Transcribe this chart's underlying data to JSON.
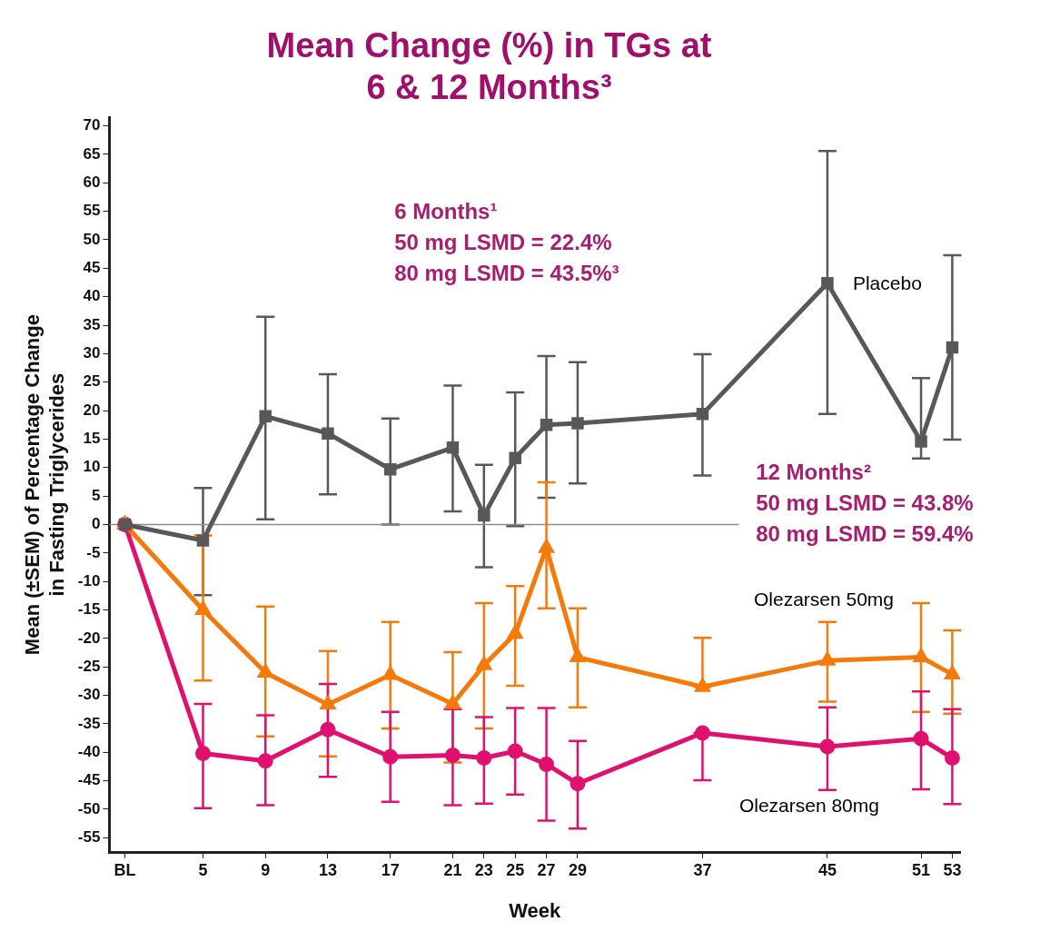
{
  "chart_data": {
    "type": "line",
    "title": "Mean Change (%) in TGs at\n6 & 12 Months³",
    "xlabel": "Week",
    "ylabel": "Mean (±SEM) of Percentage Change\nin Fasting Triglycerides",
    "x": [
      0,
      5,
      9,
      13,
      17,
      21,
      23,
      25,
      27,
      29,
      37,
      45,
      51,
      53
    ],
    "xlim": [
      -1,
      53.5
    ],
    "xticks": [
      {
        "value": 0,
        "label": "BL"
      },
      5,
      9,
      13,
      17,
      21,
      23,
      25,
      27,
      29,
      37,
      45,
      51,
      53
    ],
    "ylim": [
      -57.5,
      71.5
    ],
    "yticks": [
      -55,
      -50,
      -45,
      -40,
      -35,
      -30,
      -25,
      -20,
      -15,
      -10,
      -5,
      0,
      5,
      10,
      15,
      20,
      25,
      30,
      35,
      40,
      45,
      50,
      55,
      60,
      65,
      70
    ],
    "grid": false,
    "legend": false,
    "line_style": "solid",
    "series": [
      {
        "name": "Placebo",
        "color": "#58585a",
        "marker": "square",
        "values": [
          0,
          -2.8,
          19,
          16,
          9.7,
          13.5,
          1.6,
          11.7,
          17.5,
          17.8,
          19.4,
          42.4,
          14.6,
          31.1
        ],
        "errors": [
          null,
          [
            -12.4,
            6.4
          ],
          [
            0.9,
            36.5
          ],
          [
            5.3,
            26.4
          ],
          [
            0,
            18.6
          ],
          [
            2.3,
            24.4
          ],
          [
            -7.5,
            10.5
          ],
          [
            -0.3,
            23.2
          ],
          [
            4.7,
            29.6
          ],
          [
            7.2,
            28.5
          ],
          [
            8.6,
            29.9
          ],
          [
            19.4,
            65.6
          ],
          [
            11.6,
            25.7
          ],
          [
            14.9,
            47.3
          ]
        ]
      },
      {
        "name": "Olezarsen 50mg",
        "color": "#f57a0a",
        "marker": "triangle",
        "values": [
          0,
          -15,
          -26,
          -31.6,
          -26.4,
          -31.5,
          -24.7,
          -19.2,
          -4.1,
          -23.3,
          -28.5,
          -23.9,
          -23.3,
          -26.3
        ],
        "errors": [
          null,
          [
            -27.4,
            -1.9
          ],
          [
            -37.2,
            -14.4
          ],
          [
            -40.7,
            -22.2
          ],
          [
            -35.8,
            -17.1
          ],
          [
            -41.8,
            -22.4
          ],
          [
            -35.8,
            -13.8
          ],
          [
            -28.3,
            -10.8
          ],
          [
            -14.7,
            7.4
          ],
          [
            -32.1,
            -14.7
          ],
          [
            -28.5,
            -19.9
          ],
          [
            -31.1,
            -17.1
          ],
          [
            -32.9,
            -13.8
          ],
          [
            -33.2,
            -18.6
          ]
        ]
      },
      {
        "name": "Olezarsen 80mg",
        "color": "#e0106e",
        "marker": "circle",
        "values": [
          0,
          -40.2,
          -41.5,
          -36,
          -40.8,
          -40.5,
          -41,
          -39.8,
          -42.1,
          -45.5,
          -36.6,
          -39,
          -37.6,
          -41
        ],
        "errors": [
          null,
          [
            -49.8,
            -31.5
          ],
          [
            -49.3,
            -33.5
          ],
          [
            -44.3,
            -28
          ],
          [
            -48.7,
            -32.9
          ],
          [
            -49.3,
            -32.4
          ],
          [
            -49,
            -33.8
          ],
          [
            -47.4,
            -32.2
          ],
          [
            -52,
            -32.2
          ],
          [
            -53.4,
            -38
          ],
          [
            -44.9,
            -36.6
          ],
          [
            -46.6,
            -32.1
          ],
          [
            -46.5,
            -29.3
          ],
          [
            -49.1,
            -32.4
          ]
        ]
      }
    ],
    "ref_lines": [
      {
        "axis": "y",
        "value": 0,
        "color": "#8c8c8c"
      }
    ],
    "annotations": [
      "6 Months¹\n50 mg LSMD = 22.4%\n80 mg LSMD = 43.5%³",
      "12 Months²\n50 mg LSMD = 43.8%\n80 mg LSMD = 59.4%"
    ]
  }
}
